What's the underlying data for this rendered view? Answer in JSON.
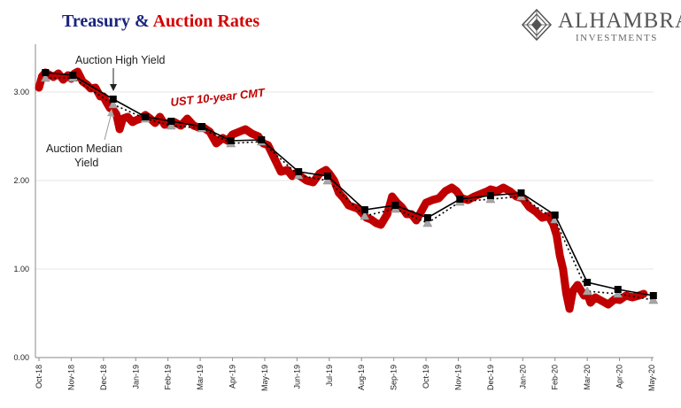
{
  "title": {
    "part1": "Treasury & ",
    "part2": "Auction Rates"
  },
  "logo": {
    "brand": "ALHAMBRA",
    "sub": "INVESTMENTS"
  },
  "colors": {
    "cmt": "#c00000",
    "high": "#000000",
    "median": "#a6a6a6"
  },
  "chart_data": {
    "type": "line",
    "ylim": [
      0,
      3.5
    ],
    "yticks": [
      "0.00",
      "1.00",
      "2.00",
      "3.00"
    ],
    "ytick_values": [
      0,
      1,
      2,
      3
    ],
    "xtick_labels": [
      "Oct-18",
      "Nov-18",
      "Dec-18",
      "Jan-19",
      "Feb-19",
      "Mar-19",
      "Apr-19",
      "May-19",
      "Jun-19",
      "Jul-19",
      "Aug-19",
      "Sep-19",
      "Oct-19",
      "Nov-19",
      "Dec-19",
      "Jan-20",
      "Feb-20",
      "Mar-20",
      "Apr-20",
      "May-20"
    ],
    "annotations": {
      "high": "Auction High Yield",
      "median_line1": "Auction Median",
      "median_line2": "Yield",
      "cmt": "UST 10-year CMT"
    },
    "series": [
      {
        "name": "UST 10-year CMT",
        "style": "thick-red",
        "points": [
          [
            0.0,
            3.05
          ],
          [
            0.1,
            3.18
          ],
          [
            0.2,
            3.22
          ],
          [
            0.3,
            3.2
          ],
          [
            0.45,
            3.17
          ],
          [
            0.6,
            3.21
          ],
          [
            0.75,
            3.14
          ],
          [
            0.9,
            3.19
          ],
          [
            1.0,
            3.15
          ],
          [
            1.1,
            3.21
          ],
          [
            1.2,
            3.23
          ],
          [
            1.35,
            3.12
          ],
          [
            1.5,
            3.08
          ],
          [
            1.6,
            3.04
          ],
          [
            1.75,
            3.05
          ],
          [
            1.9,
            2.95
          ],
          [
            2.0,
            2.95
          ],
          [
            2.1,
            2.88
          ],
          [
            2.2,
            2.82
          ],
          [
            2.3,
            2.8
          ],
          [
            2.4,
            2.75
          ],
          [
            2.5,
            2.58
          ],
          [
            2.6,
            2.7
          ],
          [
            2.75,
            2.72
          ],
          [
            2.9,
            2.66
          ],
          [
            3.0,
            2.68
          ],
          [
            3.15,
            2.7
          ],
          [
            3.3,
            2.74
          ],
          [
            3.45,
            2.7
          ],
          [
            3.6,
            2.65
          ],
          [
            3.75,
            2.72
          ],
          [
            3.9,
            2.63
          ],
          [
            4.0,
            2.65
          ],
          [
            4.2,
            2.66
          ],
          [
            4.4,
            2.62
          ],
          [
            4.6,
            2.7
          ],
          [
            4.8,
            2.62
          ],
          [
            4.95,
            2.6
          ],
          [
            5.1,
            2.6
          ],
          [
            5.3,
            2.55
          ],
          [
            5.5,
            2.42
          ],
          [
            5.7,
            2.48
          ],
          [
            5.85,
            2.45
          ],
          [
            6.0,
            2.52
          ],
          [
            6.2,
            2.55
          ],
          [
            6.4,
            2.58
          ],
          [
            6.6,
            2.53
          ],
          [
            6.8,
            2.5
          ],
          [
            6.95,
            2.42
          ],
          [
            7.1,
            2.4
          ],
          [
            7.3,
            2.25
          ],
          [
            7.5,
            2.1
          ],
          [
            7.7,
            2.12
          ],
          [
            7.85,
            2.05
          ],
          [
            7.95,
            2.08
          ],
          [
            8.1,
            2.05
          ],
          [
            8.3,
            2.0
          ],
          [
            8.5,
            1.98
          ],
          [
            8.7,
            2.08
          ],
          [
            8.9,
            2.12
          ],
          [
            9.0,
            2.08
          ],
          [
            9.15,
            2.0
          ],
          [
            9.3,
            1.86
          ],
          [
            9.45,
            1.8
          ],
          [
            9.6,
            1.72
          ],
          [
            9.75,
            1.7
          ],
          [
            9.9,
            1.68
          ],
          [
            10.0,
            1.64
          ],
          [
            10.15,
            1.58
          ],
          [
            10.3,
            1.56
          ],
          [
            10.45,
            1.52
          ],
          [
            10.6,
            1.5
          ],
          [
            10.8,
            1.62
          ],
          [
            10.95,
            1.82
          ],
          [
            11.1,
            1.75
          ],
          [
            11.25,
            1.7
          ],
          [
            11.4,
            1.62
          ],
          [
            11.55,
            1.62
          ],
          [
            11.7,
            1.55
          ],
          [
            11.85,
            1.65
          ],
          [
            12.0,
            1.75
          ],
          [
            12.2,
            1.78
          ],
          [
            12.4,
            1.8
          ],
          [
            12.6,
            1.88
          ],
          [
            12.8,
            1.92
          ],
          [
            12.95,
            1.88
          ],
          [
            13.1,
            1.8
          ],
          [
            13.3,
            1.78
          ],
          [
            13.5,
            1.82
          ],
          [
            13.7,
            1.85
          ],
          [
            13.9,
            1.88
          ],
          [
            14.0,
            1.9
          ],
          [
            14.2,
            1.88
          ],
          [
            14.4,
            1.92
          ],
          [
            14.6,
            1.88
          ],
          [
            14.8,
            1.82
          ],
          [
            15.0,
            1.8
          ],
          [
            15.2,
            1.7
          ],
          [
            15.4,
            1.65
          ],
          [
            15.6,
            1.58
          ],
          [
            15.8,
            1.6
          ],
          [
            15.95,
            1.5
          ],
          [
            16.05,
            1.38
          ],
          [
            16.15,
            1.15
          ],
          [
            16.25,
            1.0
          ],
          [
            16.35,
            0.72
          ],
          [
            16.45,
            0.55
          ],
          [
            16.55,
            0.75
          ],
          [
            16.7,
            0.82
          ],
          [
            16.9,
            0.7
          ],
          [
            17.0,
            0.72
          ],
          [
            17.1,
            0.62
          ],
          [
            17.25,
            0.68
          ],
          [
            17.45,
            0.64
          ],
          [
            17.65,
            0.6
          ],
          [
            17.85,
            0.66
          ],
          [
            18.0,
            0.65
          ],
          [
            18.2,
            0.7
          ],
          [
            18.4,
            0.68
          ],
          [
            18.6,
            0.7
          ],
          [
            18.75,
            0.72
          ]
        ]
      },
      {
        "name": "Auction High Yield",
        "style": "black-square",
        "points": [
          [
            0.2,
            3.22
          ],
          [
            1.05,
            3.19
          ],
          [
            2.3,
            2.92
          ],
          [
            3.3,
            2.72
          ],
          [
            4.1,
            2.67
          ],
          [
            5.05,
            2.61
          ],
          [
            5.95,
            2.45
          ],
          [
            6.9,
            2.46
          ],
          [
            8.05,
            2.1
          ],
          [
            8.95,
            2.05
          ],
          [
            10.1,
            1.67
          ],
          [
            11.05,
            1.72
          ],
          [
            12.05,
            1.58
          ],
          [
            13.05,
            1.79
          ],
          [
            14.0,
            1.83
          ],
          [
            14.95,
            1.86
          ],
          [
            16.0,
            1.61
          ],
          [
            17.0,
            0.85
          ],
          [
            17.95,
            0.77
          ],
          [
            19.05,
            0.7
          ]
        ]
      },
      {
        "name": "Auction Median Yield",
        "style": "gray-triangle",
        "points": [
          [
            0.2,
            3.16
          ],
          [
            1.05,
            3.16
          ],
          [
            2.3,
            2.86
          ],
          [
            3.3,
            2.7
          ],
          [
            4.1,
            2.62
          ],
          [
            5.05,
            2.59
          ],
          [
            5.95,
            2.42
          ],
          [
            6.9,
            2.44
          ],
          [
            8.05,
            2.06
          ],
          [
            8.95,
            2.0
          ],
          [
            10.1,
            1.6
          ],
          [
            11.05,
            1.68
          ],
          [
            12.05,
            1.52
          ],
          [
            13.05,
            1.76
          ],
          [
            14.0,
            1.79
          ],
          [
            14.95,
            1.82
          ],
          [
            16.0,
            1.56
          ],
          [
            17.0,
            0.75
          ],
          [
            17.95,
            0.72
          ],
          [
            19.05,
            0.65
          ]
        ]
      }
    ]
  }
}
